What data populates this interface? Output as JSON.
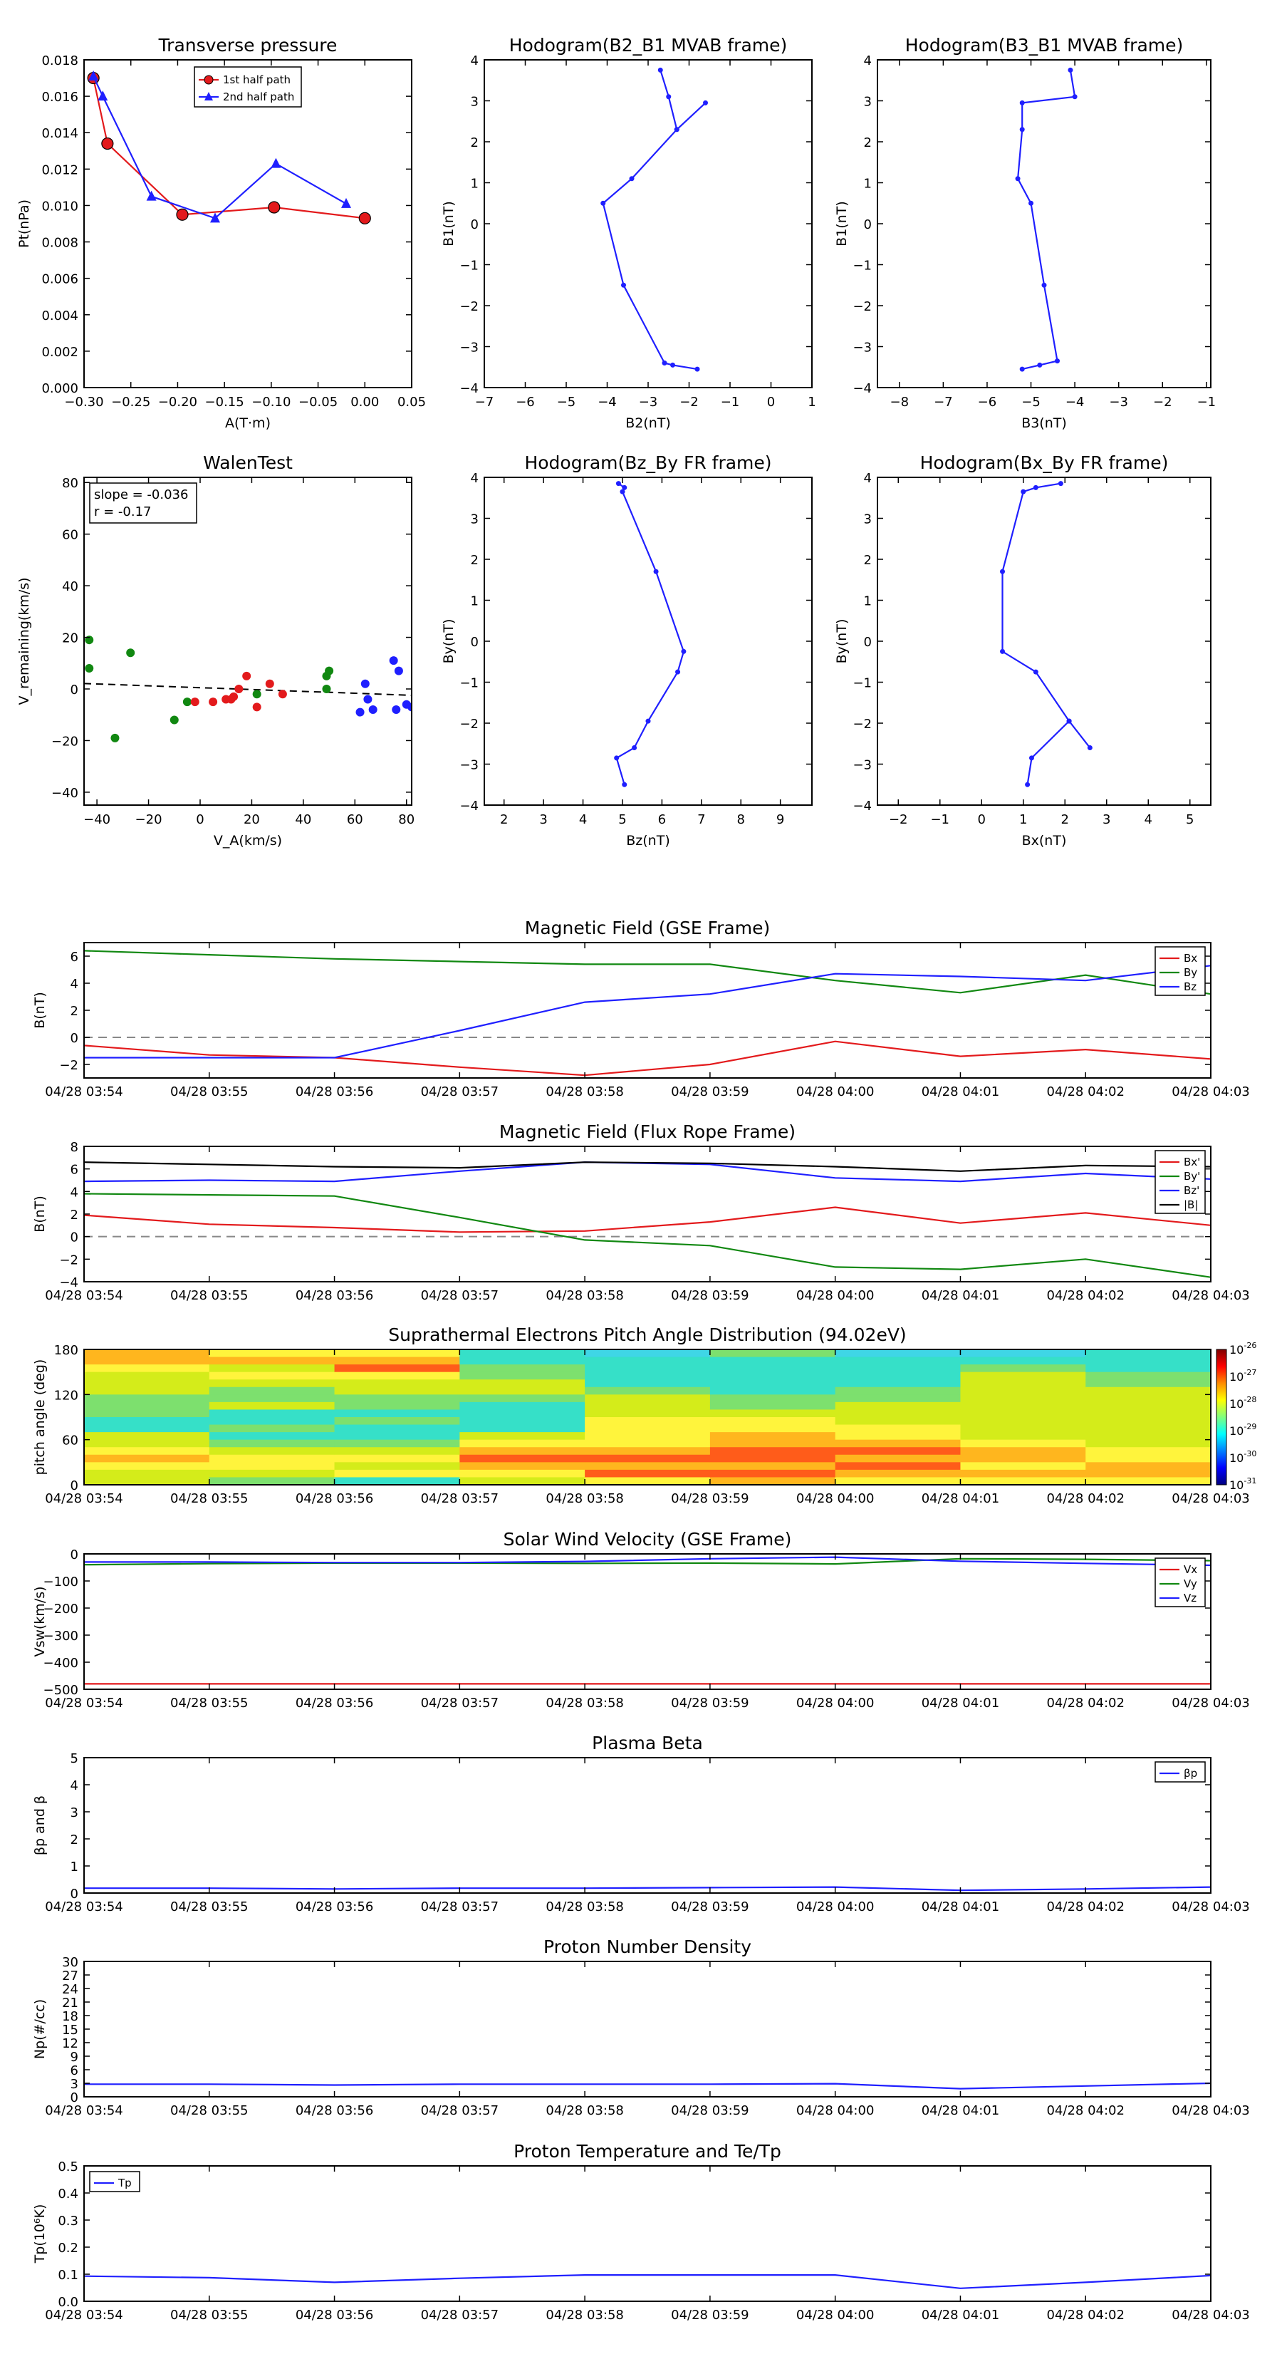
{
  "chart_data": [
    {
      "id": "transverse_pressure",
      "type": "line",
      "title": "Transverse pressure",
      "xlabel": "A(T·m)",
      "ylabel": "Pt(nPa)",
      "xlim": [
        -0.3,
        0.05
      ],
      "ylim": [
        0,
        0.018
      ],
      "xticks": [
        -0.3,
        -0.25,
        -0.2,
        -0.15,
        -0.1,
        -0.05,
        0.0,
        0.05
      ],
      "xtick_labels": [
        "−0.30",
        "−0.25",
        "−0.20",
        "−0.15",
        "−0.10",
        "−0.05",
        "0.00",
        "0.05"
      ],
      "yticks": [
        0,
        0.002,
        0.004,
        0.006,
        0.008,
        0.01,
        0.012,
        0.014,
        0.016,
        0.018
      ],
      "ytick_labels": [
        "0.000",
        "0.002",
        "0.004",
        "0.006",
        "0.008",
        "0.010",
        "0.012",
        "0.014",
        "0.016",
        "0.018"
      ],
      "legend_position": "top-center",
      "series": [
        {
          "name": "1st half path",
          "color": "#e31a1c",
          "marker": "circle",
          "x": [
            -0.29,
            -0.275,
            -0.195,
            -0.097,
            0.0
          ],
          "y": [
            0.017,
            0.0134,
            0.0095,
            0.0099,
            0.0093
          ]
        },
        {
          "name": "2nd half path",
          "color": "#1f1fff",
          "marker": "triangle",
          "x": [
            -0.29,
            -0.28,
            -0.228,
            -0.16,
            -0.095,
            -0.02
          ],
          "y": [
            0.0171,
            0.016,
            0.0105,
            0.0093,
            0.0123,
            0.0101
          ]
        }
      ]
    },
    {
      "id": "hodogram_b2_b1",
      "type": "line",
      "title": "Hodogram(B2_B1 MVAB frame)",
      "xlabel": "B2(nT)",
      "ylabel": "B1(nT)",
      "xlim": [
        -7,
        1
      ],
      "ylim": [
        -4,
        4
      ],
      "xticks": [
        -7,
        -6,
        -5,
        -4,
        -3,
        -2,
        -1,
        0,
        1
      ],
      "xtick_labels": [
        "−7",
        "−6",
        "−5",
        "−4",
        "−3",
        "−2",
        "−1",
        "0",
        "1"
      ],
      "yticks": [
        -4,
        -3,
        -2,
        -1,
        0,
        1,
        2,
        3,
        4
      ],
      "ytick_labels": [
        "−4",
        "−3",
        "−2",
        "−1",
        "0",
        "1",
        "2",
        "3",
        "4"
      ],
      "series": [
        {
          "color": "#1f1fff",
          "x": [
            -2.7,
            -2.5,
            -2.3,
            -1.6,
            -2.3,
            -3.4,
            -4.1,
            -3.6,
            -2.6,
            -2.4,
            -1.8
          ],
          "y": [
            3.75,
            3.1,
            2.3,
            2.95,
            2.3,
            1.1,
            0.5,
            -1.5,
            -3.4,
            -3.45,
            -3.55
          ]
        }
      ]
    },
    {
      "id": "hodogram_b3_b1",
      "type": "line",
      "title": "Hodogram(B3_B1 MVAB frame)",
      "xlabel": "B3(nT)",
      "ylabel": "B1(nT)",
      "xlim": [
        -8.5,
        -0.9
      ],
      "ylim": [
        -4,
        4
      ],
      "xticks": [
        -8,
        -7,
        -6,
        -5,
        -4,
        -3,
        -2,
        -1
      ],
      "xtick_labels": [
        "−8",
        "−7",
        "−6",
        "−5",
        "−4",
        "−3",
        "−2",
        "−1"
      ],
      "yticks": [
        -4,
        -3,
        -2,
        -1,
        0,
        1,
        2,
        3,
        4
      ],
      "ytick_labels": [
        "−4",
        "−3",
        "−2",
        "−1",
        "0",
        "1",
        "2",
        "3",
        "4"
      ],
      "series": [
        {
          "color": "#1f1fff",
          "x": [
            -4.1,
            -4.0,
            -5.2,
            -5.2,
            -5.3,
            -5.0,
            -4.7,
            -4.4,
            -4.8,
            -5.2
          ],
          "y": [
            3.75,
            3.1,
            2.95,
            2.3,
            1.1,
            0.5,
            -1.5,
            -3.35,
            -3.45,
            -3.55
          ]
        }
      ]
    },
    {
      "id": "walen_test",
      "type": "scatter",
      "title": "WalenTest",
      "xlabel": "V_A(km/s)",
      "ylabel": "V_remaining(km/s)",
      "xlim": [
        -45,
        82
      ],
      "ylim": [
        -45,
        82
      ],
      "xticks": [
        -40,
        -20,
        0,
        20,
        40,
        60,
        80
      ],
      "xtick_labels": [
        "−40",
        "−20",
        "0",
        "20",
        "40",
        "60",
        "80"
      ],
      "yticks": [
        -40,
        -20,
        0,
        20,
        40,
        60,
        80
      ],
      "ytick_labels": [
        "−40",
        "−20",
        "0",
        "20",
        "40",
        "60",
        "80"
      ],
      "annotations": [
        "slope = -0.036",
        "r = -0.17"
      ],
      "fit_line": {
        "slope": -0.036,
        "intercept": 0.5,
        "style": "dashed",
        "color": "#000000"
      },
      "series": [
        {
          "color": "#118811",
          "x": [
            -43,
            -43,
            -33,
            -27,
            -10,
            -5,
            22,
            49,
            50,
            49
          ],
          "y": [
            19,
            8,
            -19,
            14,
            -12,
            -5,
            -2,
            5,
            7,
            0
          ]
        },
        {
          "color": "#e31a1c",
          "x": [
            -2,
            5,
            10,
            12,
            13,
            15,
            18,
            22,
            27,
            32
          ],
          "y": [
            -5,
            -5,
            -4,
            -4,
            -3,
            0,
            5,
            -7,
            2,
            -2
          ]
        },
        {
          "color": "#1f1fff",
          "x": [
            62,
            64,
            65,
            67,
            76,
            77,
            75,
            82,
            80
          ],
          "y": [
            -9,
            2,
            -4,
            -8,
            -8,
            7,
            11,
            -7,
            -6
          ]
        }
      ]
    },
    {
      "id": "hodogram_bz_by",
      "type": "line",
      "title": "Hodogram(Bz_By FR frame)",
      "xlabel": "Bz(nT)",
      "ylabel": "By(nT)",
      "xlim": [
        1.5,
        9.8
      ],
      "ylim": [
        -4,
        4
      ],
      "xticks": [
        2,
        3,
        4,
        5,
        6,
        7,
        8,
        9
      ],
      "xtick_labels": [
        "2",
        "3",
        "4",
        "5",
        "6",
        "7",
        "8",
        "9"
      ],
      "yticks": [
        -4,
        -3,
        -2,
        -1,
        0,
        1,
        2,
        3,
        4
      ],
      "ytick_labels": [
        "−4",
        "−3",
        "−2",
        "−1",
        "0",
        "1",
        "2",
        "3",
        "4"
      ],
      "series": [
        {
          "color": "#1f1fff",
          "x": [
            4.9,
            5.05,
            5.0,
            5.85,
            6.55,
            6.4,
            5.65,
            5.3,
            4.85,
            5.05
          ],
          "y": [
            3.85,
            3.75,
            3.65,
            1.7,
            -0.25,
            -0.75,
            -1.95,
            -2.6,
            -2.85,
            -3.5
          ]
        }
      ]
    },
    {
      "id": "hodogram_bx_by",
      "type": "line",
      "title": "Hodogram(Bx_By FR frame)",
      "xlabel": "Bx(nT)",
      "ylabel": "By(nT)",
      "xlim": [
        -2.5,
        5.5
      ],
      "ylim": [
        -4,
        4
      ],
      "xticks": [
        -2,
        -1,
        0,
        1,
        2,
        3,
        4,
        5
      ],
      "xtick_labels": [
        "−2",
        "−1",
        "0",
        "1",
        "2",
        "3",
        "4",
        "5"
      ],
      "yticks": [
        -4,
        -3,
        -2,
        -1,
        0,
        1,
        2,
        3,
        4
      ],
      "ytick_labels": [
        "−4",
        "−3",
        "−2",
        "−1",
        "0",
        "1",
        "2",
        "3",
        "4"
      ],
      "series": [
        {
          "color": "#1f1fff",
          "x": [
            1.9,
            1.3,
            1.0,
            0.5,
            0.5,
            1.3,
            2.1,
            2.6,
            2.1,
            1.2,
            1.1
          ],
          "y": [
            3.85,
            3.75,
            3.65,
            1.7,
            -0.25,
            -0.75,
            -1.95,
            -2.6,
            -1.95,
            -2.85,
            -3.5
          ]
        }
      ]
    },
    {
      "id": "magnetic_field_gse",
      "type": "line",
      "title": "Magnetic Field (GSE Frame)",
      "ylabel": "B(nT)",
      "ylim": [
        -3,
        7
      ],
      "yticks": [
        -2,
        0,
        2,
        4,
        6
      ],
      "ytick_labels": [
        "−2",
        "0",
        "2",
        "4",
        "6"
      ],
      "hline": 0,
      "legend_position": "right",
      "x": [
        0,
        1,
        2,
        3,
        4,
        5,
        6,
        7,
        8,
        9
      ],
      "series": [
        {
          "name": "Bx",
          "color": "#e31a1c",
          "values": [
            -0.6,
            -1.3,
            -1.5,
            -2.2,
            -2.8,
            -2.0,
            -0.3,
            -1.4,
            -0.9,
            -1.6
          ]
        },
        {
          "name": "By",
          "color": "#118811",
          "values": [
            6.4,
            6.1,
            5.8,
            5.6,
            5.4,
            5.4,
            4.2,
            3.3,
            4.6,
            3.2
          ]
        },
        {
          "name": "Bz",
          "color": "#1f1fff",
          "values": [
            -1.5,
            -1.5,
            -1.5,
            0.5,
            2.6,
            3.2,
            4.7,
            4.5,
            4.2,
            5.3
          ]
        }
      ]
    },
    {
      "id": "magnetic_field_fr",
      "type": "line",
      "title": "Magnetic Field (Flux Rope Frame)",
      "ylabel": "B(nT)",
      "ylim": [
        -4,
        8
      ],
      "yticks": [
        -4,
        -2,
        0,
        2,
        4,
        6,
        8
      ],
      "ytick_labels": [
        "−4",
        "−2",
        "0",
        "2",
        "4",
        "6",
        "8"
      ],
      "hline": 0,
      "legend_position": "right",
      "x": [
        0,
        1,
        2,
        3,
        4,
        5,
        6,
        7,
        8,
        9
      ],
      "series": [
        {
          "name": "Bx'",
          "color": "#e31a1c",
          "values": [
            1.9,
            1.1,
            0.8,
            0.4,
            0.5,
            1.3,
            2.6,
            1.2,
            2.1,
            1.0
          ]
        },
        {
          "name": "By'",
          "color": "#118811",
          "values": [
            3.8,
            3.7,
            3.6,
            1.7,
            -0.3,
            -0.8,
            -2.7,
            -2.9,
            -2.0,
            -3.6
          ]
        },
        {
          "name": "Bz'",
          "color": "#1f1fff",
          "values": [
            4.9,
            5.0,
            4.9,
            5.8,
            6.6,
            6.4,
            5.2,
            4.9,
            5.6,
            5.1
          ]
        },
        {
          "name": "|B|",
          "color": "#000000",
          "values": [
            6.6,
            6.4,
            6.2,
            6.1,
            6.6,
            6.5,
            6.2,
            5.8,
            6.3,
            6.2
          ]
        }
      ]
    },
    {
      "id": "pitch_angle",
      "type": "heatmap",
      "title": "Suprathermal Electrons Pitch Angle Distribution (94.02eV)",
      "ylabel": "pitch angle (deg)",
      "ylim": [
        0,
        180
      ],
      "yticks": [
        0,
        60,
        120,
        180
      ],
      "ytick_labels": [
        "0",
        "60",
        "120",
        "180"
      ],
      "colorbar_ticks": [
        "10",
        "10",
        "10",
        "10",
        "10",
        "10"
      ],
      "colorbar_exponents": [
        "-26",
        "-27",
        "-28",
        "-29",
        "-30",
        "-31"
      ],
      "grid_levels_note": "levels 0-6 (low to high intensity) per 10° bin from 180 down to 0",
      "columns": [
        [
          5,
          5,
          4,
          3,
          3,
          3,
          2,
          2,
          2,
          1,
          1,
          3,
          3,
          4,
          5,
          4,
          3,
          3
        ],
        [
          4,
          5,
          3,
          4,
          3,
          2,
          2,
          3,
          1,
          1,
          2,
          1,
          2,
          3,
          4,
          4,
          3,
          2
        ],
        [
          4,
          5,
          6,
          4,
          3,
          3,
          2,
          2,
          1,
          2,
          1,
          1,
          2,
          3,
          4,
          3,
          4,
          1
        ],
        [
          1,
          1,
          2,
          2,
          3,
          3,
          2,
          1,
          1,
          1,
          1,
          3,
          4,
          5,
          6,
          5,
          4,
          3
        ],
        [
          0,
          1,
          1,
          1,
          1,
          2,
          3,
          3,
          3,
          4,
          4,
          4,
          4,
          5,
          6,
          5,
          6,
          4
        ],
        [
          2,
          1,
          1,
          1,
          1,
          1,
          2,
          2,
          3,
          4,
          4,
          5,
          5,
          6,
          6,
          5,
          6,
          5
        ],
        [
          0,
          1,
          1,
          1,
          1,
          2,
          2,
          3,
          3,
          3,
          4,
          4,
          5,
          6,
          5,
          6,
          5,
          4
        ],
        [
          0,
          1,
          2,
          3,
          3,
          3,
          3,
          3,
          3,
          3,
          3,
          3,
          4,
          5,
          5,
          4,
          5,
          4
        ],
        [
          1,
          1,
          1,
          2,
          2,
          3,
          3,
          3,
          3,
          3,
          3,
          3,
          3,
          4,
          4,
          5,
          5,
          4
        ]
      ]
    },
    {
      "id": "solar_wind_velocity",
      "type": "line",
      "title": "Solar Wind Velocity (GSE Frame)",
      "ylabel": "Vsw(km/s)",
      "ylim": [
        -500,
        0
      ],
      "yticks": [
        -500,
        -400,
        -300,
        -200,
        -100,
        0
      ],
      "ytick_labels": [
        "−500",
        "−400",
        "−300",
        "−200",
        "−100",
        "0"
      ],
      "legend_position": "right",
      "x": [
        0,
        1,
        2,
        3,
        4,
        5,
        6,
        7,
        8,
        9
      ],
      "series": [
        {
          "name": "Vx",
          "color": "#e31a1c",
          "values": [
            -480,
            -480,
            -480,
            -480,
            -480,
            -480,
            -480,
            -480,
            -480,
            -480
          ]
        },
        {
          "name": "Vy",
          "color": "#118811",
          "values": [
            -40,
            -36,
            -34,
            -34,
            -35,
            -34,
            -37,
            -18,
            -20,
            -25
          ]
        },
        {
          "name": "Vz",
          "color": "#1f1fff",
          "values": [
            -30,
            -30,
            -32,
            -32,
            -28,
            -18,
            -12,
            -27,
            -35,
            -42
          ]
        }
      ]
    },
    {
      "id": "plasma_beta",
      "type": "line",
      "title": "Plasma Beta",
      "ylabel": "βp and β",
      "ylim": [
        0,
        5
      ],
      "yticks": [
        0,
        1,
        2,
        3,
        4,
        5
      ],
      "ytick_labels": [
        "0",
        "1",
        "2",
        "3",
        "4",
        "5"
      ],
      "legend_position": "right",
      "x": [
        0,
        1,
        2,
        3,
        4,
        5,
        6,
        7,
        8,
        9
      ],
      "series": [
        {
          "name": "βp",
          "color": "#1f1fff",
          "values": [
            0.18,
            0.18,
            0.15,
            0.18,
            0.18,
            0.2,
            0.22,
            0.1,
            0.15,
            0.22
          ]
        }
      ]
    },
    {
      "id": "proton_density",
      "type": "line",
      "title": "Proton Number Density",
      "ylabel": "Np(#/cc)",
      "ylim": [
        0,
        30
      ],
      "yticks": [
        0,
        3,
        6,
        9,
        12,
        15,
        18,
        21,
        24,
        27,
        30
      ],
      "ytick_labels": [
        "0",
        "3",
        "6",
        "9",
        "12",
        "15",
        "18",
        "21",
        "24",
        "27",
        "30"
      ],
      "x": [
        0,
        1,
        2,
        3,
        4,
        5,
        6,
        7,
        8,
        9
      ],
      "series": [
        {
          "color": "#1f1fff",
          "values": [
            2.8,
            2.8,
            2.6,
            2.8,
            2.8,
            2.8,
            2.9,
            1.8,
            2.4,
            3.0
          ]
        }
      ]
    },
    {
      "id": "proton_temperature",
      "type": "line",
      "title": "Proton Temperature and Te/Tp",
      "ylabel": "Tp(10⁶K)",
      "ylim": [
        0,
        0.5
      ],
      "yticks": [
        0,
        0.1,
        0.2,
        0.3,
        0.4,
        0.5
      ],
      "ytick_labels": [
        "0.0",
        "0.1",
        "0.2",
        "0.3",
        "0.4",
        "0.5"
      ],
      "legend_position": "left",
      "x": [
        0,
        1,
        2,
        3,
        4,
        5,
        6,
        7,
        8,
        9
      ],
      "series": [
        {
          "name": "Tp",
          "color": "#1f1fff",
          "values": [
            0.093,
            0.087,
            0.07,
            0.085,
            0.097,
            0.097,
            0.097,
            0.048,
            0.07,
            0.095
          ]
        }
      ]
    }
  ],
  "time_axis_labels": [
    "04/28 03:54",
    "04/28 03:55",
    "04/28 03:56",
    "04/28 03:57",
    "04/28 03:58",
    "04/28 03:59",
    "04/28 04:00",
    "04/28 04:01",
    "04/28 04:02",
    "04/28 04:03"
  ]
}
